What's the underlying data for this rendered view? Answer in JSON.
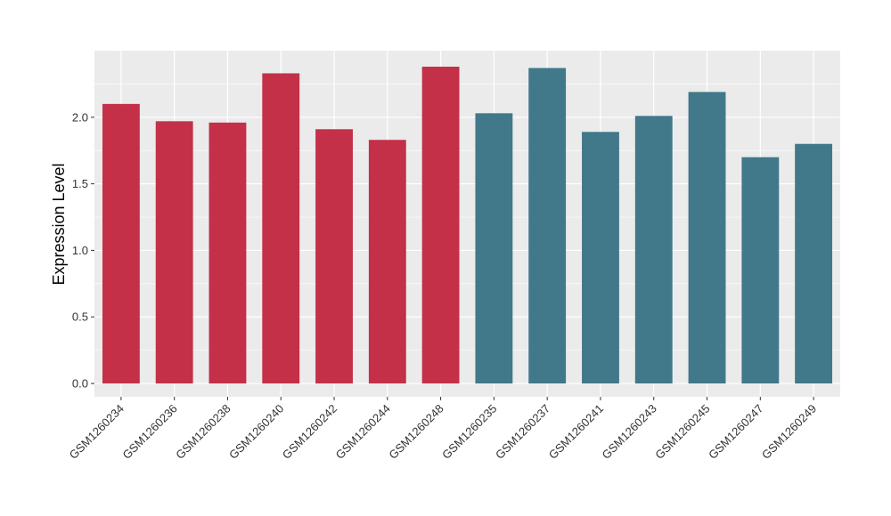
{
  "chart_data": {
    "type": "bar",
    "title": "",
    "xlabel": "",
    "ylabel": "Expression Level",
    "ylim": [
      -0.1,
      2.5
    ],
    "yticks": [
      0.0,
      0.5,
      1.0,
      1.5,
      2.0
    ],
    "ytick_labels": [
      "0.0",
      "0.5",
      "1.0",
      "1.5",
      "2.0"
    ],
    "grid": true,
    "legend": "none",
    "colors": {
      "panel": "#EBEBEB",
      "grid": "#FFFFFF",
      "group_a": "#C33048",
      "group_b": "#41788A"
    },
    "categories": [
      "GSM1260234",
      "GSM1260236",
      "GSM1260238",
      "GSM1260240",
      "GSM1260242",
      "GSM1260244",
      "GSM1260248",
      "GSM1260235",
      "GSM1260237",
      "GSM1260241",
      "GSM1260243",
      "GSM1260245",
      "GSM1260247",
      "GSM1260249"
    ],
    "values": [
      2.1,
      1.97,
      1.96,
      2.33,
      1.91,
      1.83,
      2.38,
      2.03,
      2.37,
      1.89,
      2.01,
      2.19,
      1.7,
      1.8
    ],
    "bar_colors": [
      "#C33048",
      "#C33048",
      "#C33048",
      "#C33048",
      "#C33048",
      "#C33048",
      "#C33048",
      "#41788A",
      "#41788A",
      "#41788A",
      "#41788A",
      "#41788A",
      "#41788A",
      "#41788A"
    ]
  }
}
